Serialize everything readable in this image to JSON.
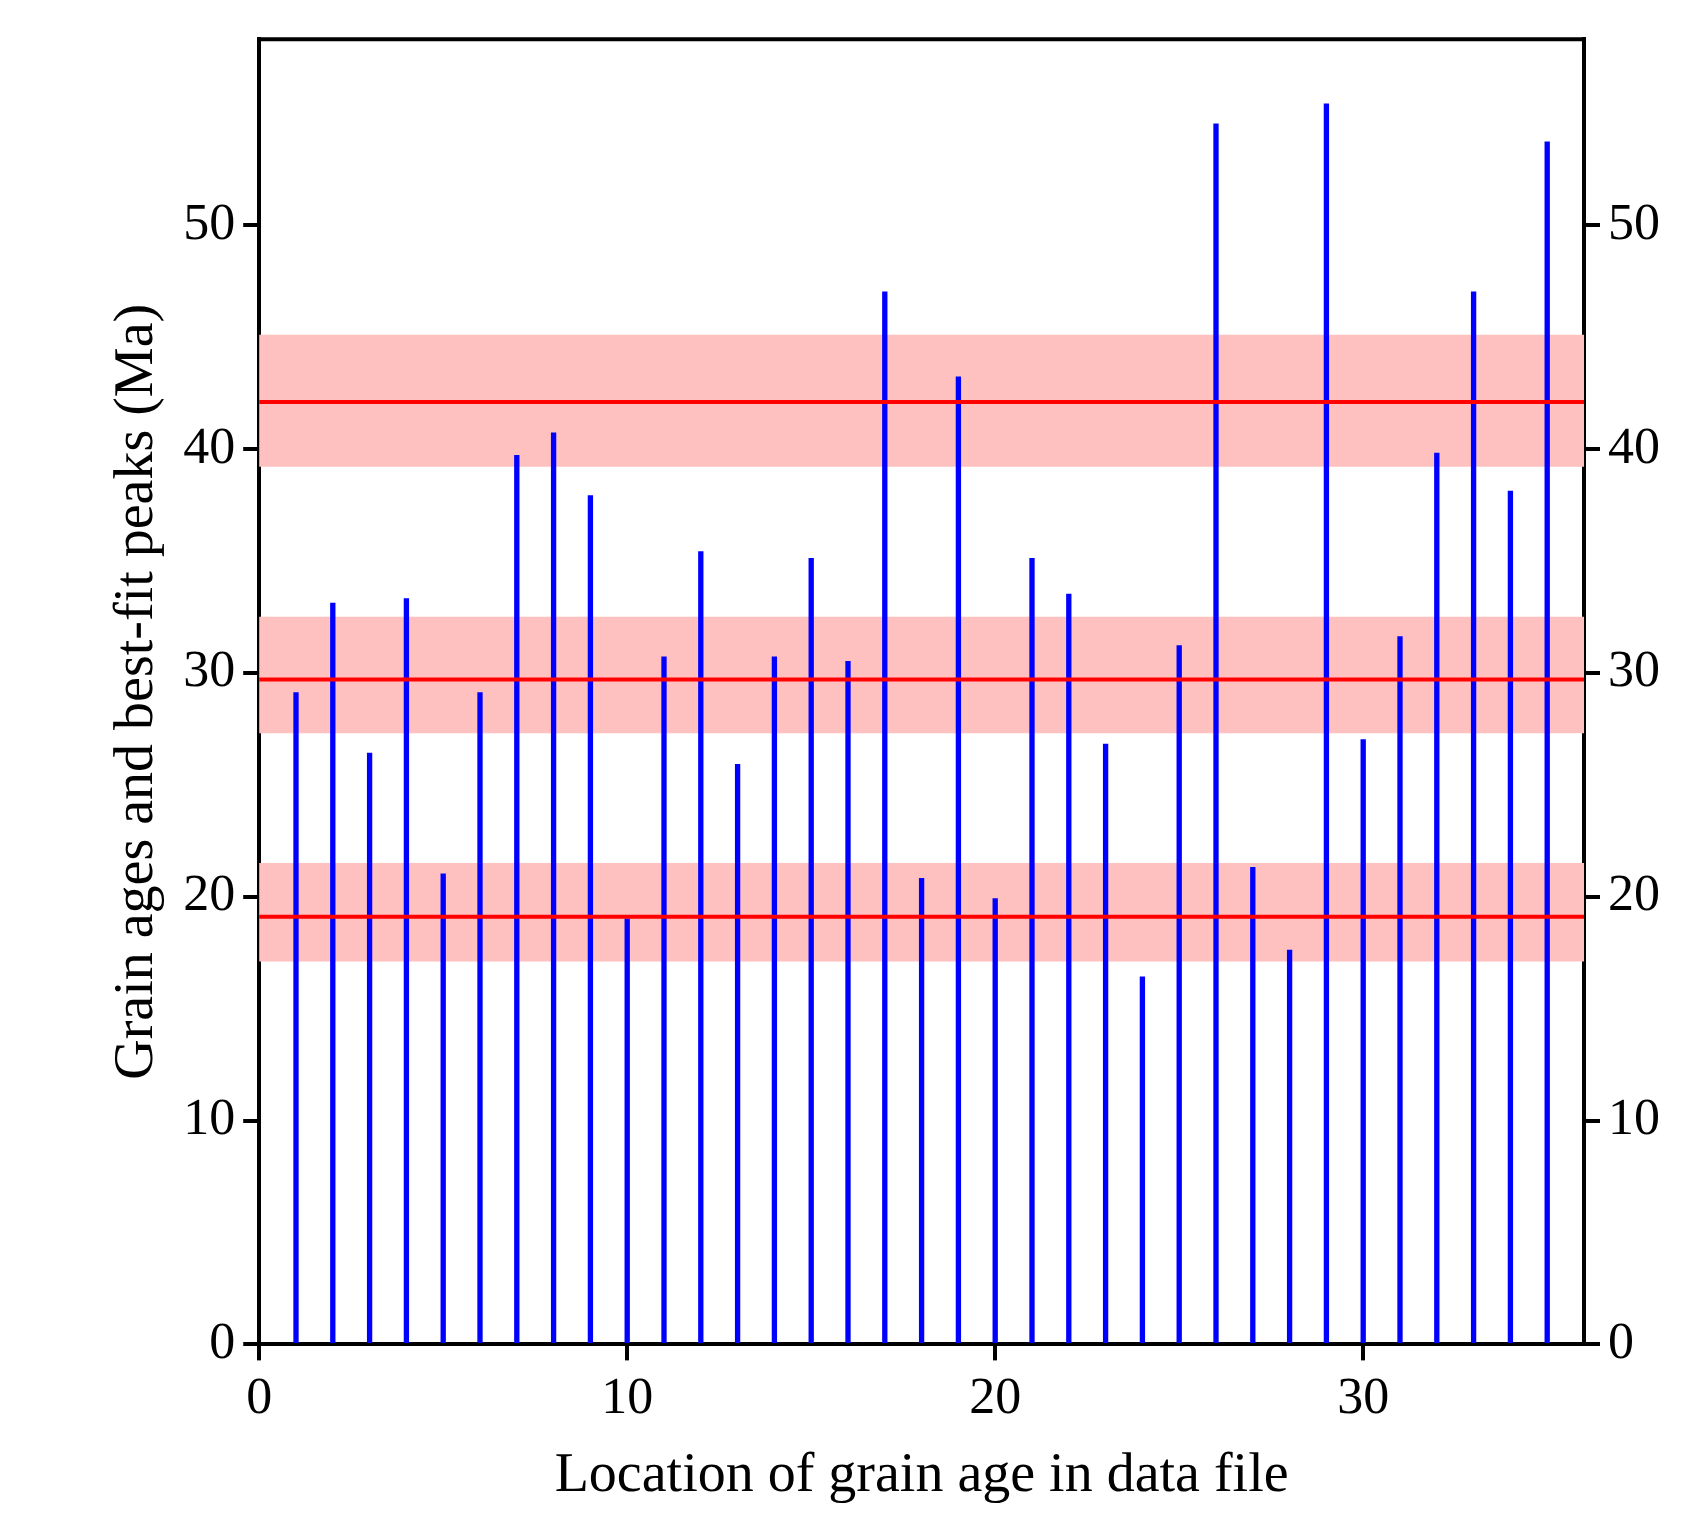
{
  "chart_data": {
    "type": "bar",
    "xlabel": "Location of grain age in data file",
    "ylabel": "Grain ages and best-fit peaks (Ma)",
    "x": [
      1,
      2,
      3,
      4,
      5,
      6,
      7,
      8,
      9,
      10,
      11,
      12,
      13,
      14,
      15,
      16,
      17,
      18,
      19,
      20,
      21,
      22,
      23,
      24,
      25,
      26,
      27,
      28,
      29,
      30,
      31,
      32,
      33,
      34,
      35
    ],
    "values": [
      29.1,
      33.1,
      26.4,
      33.3,
      21.0,
      29.1,
      39.7,
      40.7,
      37.9,
      19.0,
      30.7,
      35.4,
      25.9,
      30.7,
      35.1,
      30.5,
      47.0,
      20.8,
      43.2,
      19.9,
      35.1,
      33.5,
      26.8,
      16.4,
      31.2,
      54.5,
      21.3,
      17.6,
      55.4,
      27.0,
      31.6,
      39.8,
      47.0,
      38.1,
      53.7
    ],
    "color": "#0000ff",
    "xlim": [
      0,
      36
    ],
    "xticks": [
      0,
      10,
      20,
      30
    ],
    "ylim": [
      0,
      58.3
    ],
    "yticks": [
      0,
      10,
      20,
      30,
      40,
      50
    ],
    "y2lim": [
      0,
      58.3
    ],
    "y2ticks": [
      0,
      10,
      20,
      30,
      40,
      50
    ],
    "bands": [
      {
        "axis": "y",
        "from": 17.1,
        "to": 21.5,
        "color": "#ffc0c0"
      },
      {
        "axis": "y",
        "from": 27.3,
        "to": 32.5,
        "color": "#ffc0c0"
      },
      {
        "axis": "y",
        "from": 39.2,
        "to": 45.1,
        "color": "#ffc0c0"
      }
    ],
    "ref_lines": [
      {
        "axis": "y",
        "value": 19.1,
        "color": "#ff0000"
      },
      {
        "axis": "y",
        "value": 29.7,
        "color": "#ff0000"
      },
      {
        "axis": "y",
        "value": 42.1,
        "color": "#ff0000"
      }
    ]
  }
}
